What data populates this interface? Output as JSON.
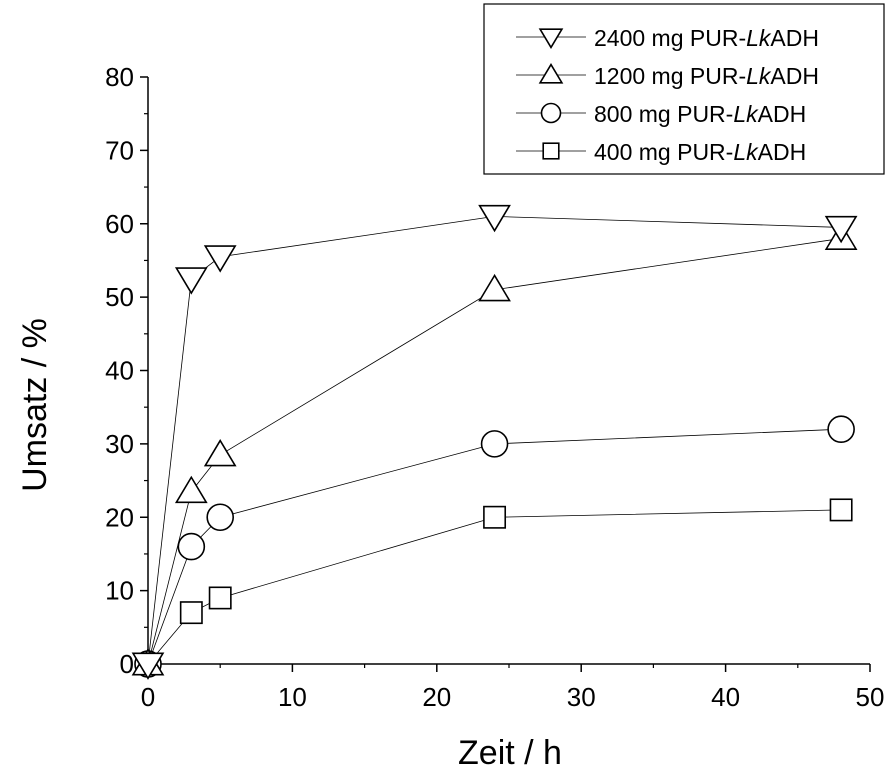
{
  "chart_data": {
    "type": "line",
    "title": "",
    "xlabel": "Zeit / h",
    "ylabel": "Umsatz / %",
    "xlim": [
      0,
      50
    ],
    "ylim": [
      0,
      80
    ],
    "x_ticks": [
      "0",
      "10",
      "20",
      "30",
      "40",
      "50"
    ],
    "y_ticks": [
      "0",
      "10",
      "20",
      "30",
      "40",
      "50",
      "60",
      "70",
      "80"
    ],
    "grid": false,
    "legend_position": "top-right",
    "series": [
      {
        "name": "2400 mg PUR-LkADH",
        "name_prefix": "2400 mg PUR-",
        "name_italic": "Lk",
        "name_suffix": "ADH",
        "marker": "triangle-down",
        "x": [
          0,
          3,
          5,
          24,
          48
        ],
        "y": [
          0,
          52.5,
          55.5,
          61,
          59.5
        ]
      },
      {
        "name": "1200 mg PUR-LkADH",
        "name_prefix": "1200 mg PUR-",
        "name_italic": "Lk",
        "name_suffix": "ADH",
        "marker": "triangle-up",
        "x": [
          0,
          3,
          5,
          24,
          48
        ],
        "y": [
          0,
          23.5,
          28.5,
          51,
          58
        ]
      },
      {
        "name": "800 mg PUR-LkADH",
        "name_prefix": "800 mg PUR-",
        "name_italic": "Lk",
        "name_suffix": "ADH",
        "marker": "circle",
        "x": [
          0,
          3,
          5,
          24,
          48
        ],
        "y": [
          0,
          16,
          20,
          30,
          32
        ]
      },
      {
        "name": "400 mg PUR-LkADH",
        "name_prefix": "400 mg PUR-",
        "name_italic": "Lk",
        "name_suffix": "ADH",
        "marker": "square",
        "x": [
          0,
          3,
          5,
          24,
          48
        ],
        "y": [
          0,
          7,
          9,
          20,
          21
        ]
      }
    ]
  }
}
